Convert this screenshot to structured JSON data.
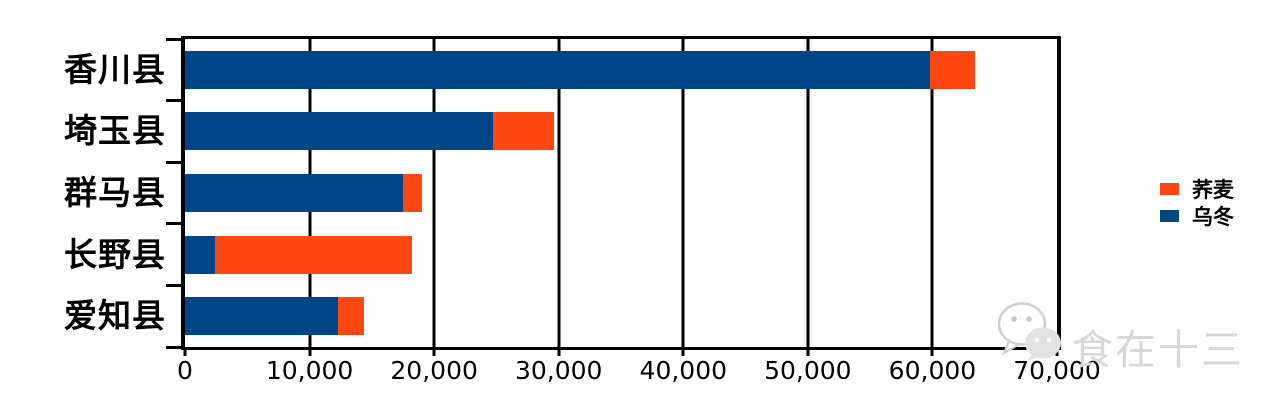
{
  "chart_data": {
    "type": "bar",
    "orientation": "horizontal",
    "stacked": true,
    "title": "",
    "xlabel": "",
    "ylabel": "",
    "categories": [
      "香川县",
      "埼玉县",
      "群马县",
      "长野县",
      "爱知县"
    ],
    "series": [
      {
        "name": "乌冬",
        "color": "#004687",
        "values": [
          59800,
          24700,
          17500,
          2400,
          12300
        ]
      },
      {
        "name": "荞麦",
        "color": "#FF4713",
        "values": [
          3600,
          4900,
          1500,
          15800,
          2100
        ]
      }
    ],
    "legend": {
      "position": "right",
      "order": [
        "荞麦",
        "乌冬"
      ]
    },
    "xlim": [
      0,
      70000
    ],
    "x_tick_values": [
      0,
      10000,
      20000,
      30000,
      40000,
      50000,
      60000,
      70000
    ],
    "x_tick_labels": [
      "0",
      "10,000",
      "20,000",
      "30,000",
      "40,000",
      "50,000",
      "60,000",
      "70,000"
    ],
    "grid": true,
    "axis_color": "#000000",
    "background_color": "#ffffff"
  },
  "watermark": {
    "text": "食在十三",
    "icon": "wechat-icon"
  }
}
